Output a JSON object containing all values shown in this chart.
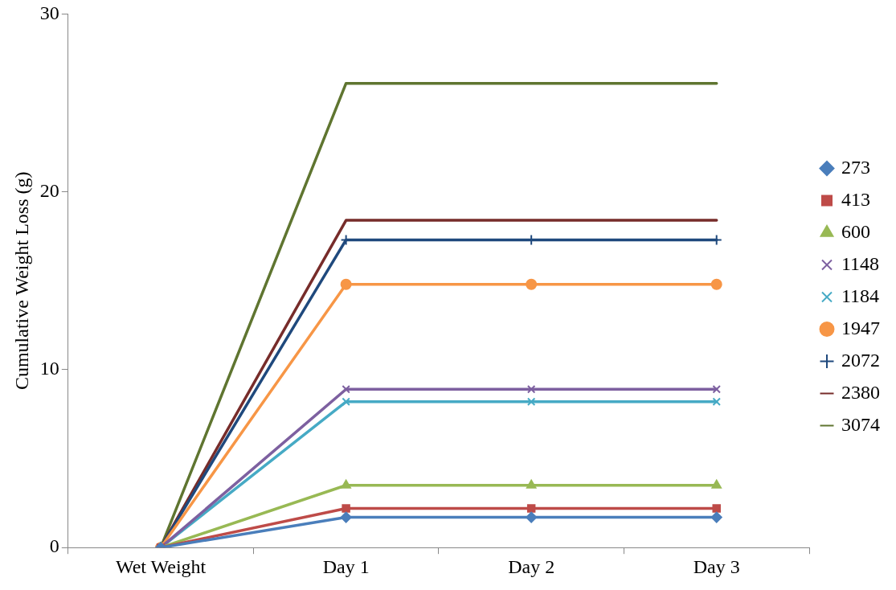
{
  "chart_data": {
    "type": "line",
    "ylabel": "Cumulative Weight Loss (g)",
    "categories": [
      "Wet Weight",
      "Day 1",
      "Day 2",
      "Day 3"
    ],
    "ylim": [
      0,
      30
    ],
    "yticks": [
      0,
      10,
      20,
      30
    ],
    "grid": false,
    "legend": "right",
    "series": [
      {
        "name": "273",
        "color": "#4a7ebb",
        "marker": "diamond",
        "values": [
          0,
          1.7,
          1.7,
          1.7
        ]
      },
      {
        "name": "413",
        "color": "#be4b48",
        "marker": "square",
        "values": [
          0,
          2.2,
          2.2,
          2.2
        ]
      },
      {
        "name": "600",
        "color": "#98b954",
        "marker": "triangle",
        "values": [
          0,
          3.5,
          3.5,
          3.5
        ]
      },
      {
        "name": "1148",
        "color": "#7d60a0",
        "marker": "cross",
        "values": [
          0,
          8.9,
          8.9,
          8.9
        ]
      },
      {
        "name": "1184",
        "color": "#46aac5",
        "marker": "cross",
        "values": [
          0,
          8.2,
          8.2,
          8.2
        ]
      },
      {
        "name": "1947",
        "color": "#f79646",
        "marker": "circle",
        "values": [
          0,
          14.8,
          14.8,
          14.8
        ]
      },
      {
        "name": "2072",
        "color": "#1f497d",
        "marker": "plus",
        "values": [
          0,
          17.3,
          17.3,
          17.3
        ]
      },
      {
        "name": "2380",
        "color": "#772c2a",
        "marker": "none",
        "values": [
          0,
          18.4,
          18.4,
          18.4
        ]
      },
      {
        "name": "3074",
        "color": "#5f7530",
        "marker": "none",
        "values": [
          0,
          26.1,
          26.1,
          26.1
        ]
      }
    ]
  }
}
